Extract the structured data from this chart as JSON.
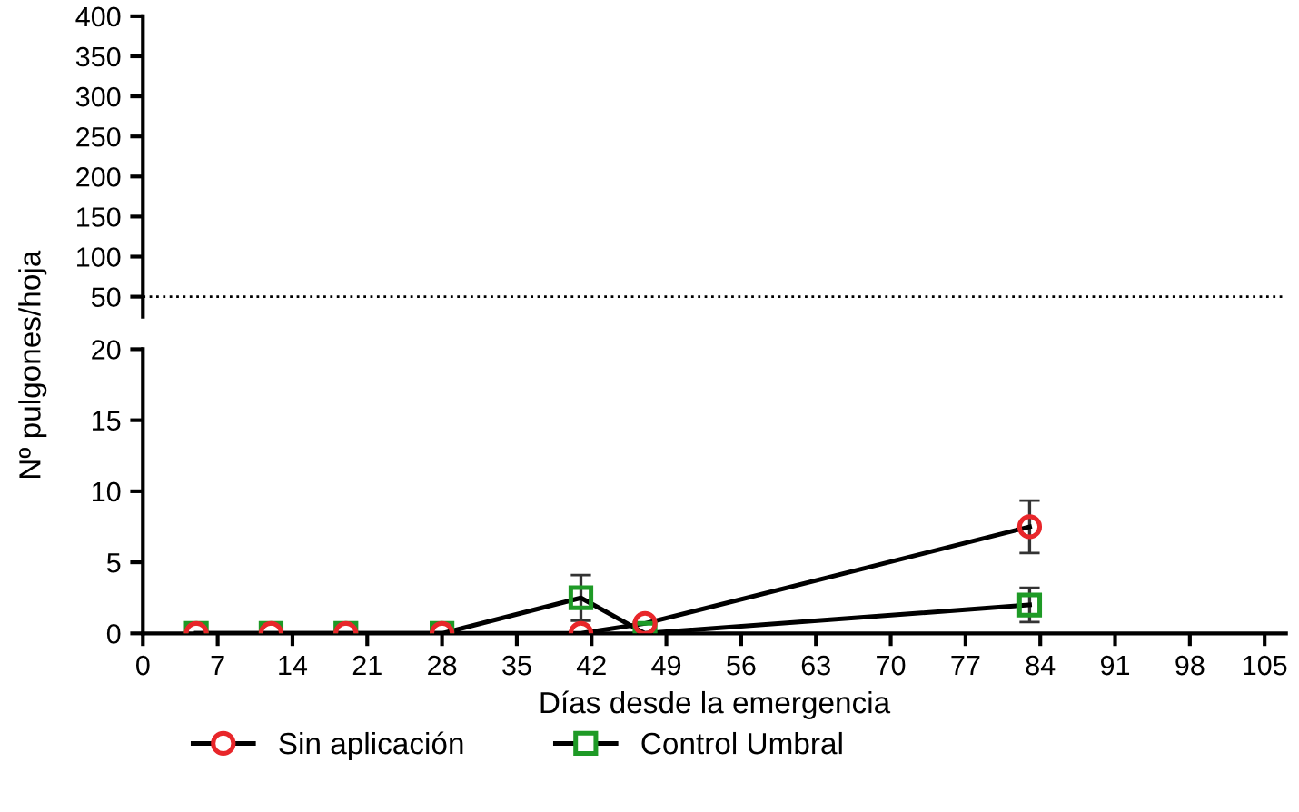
{
  "chart_data": [
    {
      "type": "line",
      "ylabel": "Nº pulgones/hoja",
      "xlim": [
        0,
        107
      ],
      "ylim": [
        25,
        400
      ],
      "yticks": [
        50,
        100,
        150,
        200,
        250,
        300,
        350,
        400
      ],
      "tick_labels": "y",
      "grid": false,
      "legend": false,
      "ref_lines": [
        {
          "axis": "y",
          "value": 50,
          "line_style": "dotted",
          "color": "#000000"
        }
      ]
    },
    {
      "type": "line",
      "xlabel": "Días desde la emergencia",
      "xlim": [
        0,
        107
      ],
      "xticks": [
        0,
        7,
        14,
        21,
        28,
        35,
        42,
        49,
        56,
        63,
        70,
        77,
        84,
        91,
        98,
        105
      ],
      "ylim": [
        0,
        20
      ],
      "yticks": [
        0,
        5,
        10,
        15,
        20
      ],
      "grid": false,
      "legend": "bottom",
      "line_style": "solid",
      "series": [
        {
          "name": "Sin aplicación",
          "color": "#e8262a",
          "marker": "circle",
          "x": [
            5,
            12,
            19,
            28,
            41,
            47,
            83
          ],
          "values": [
            0,
            0,
            0,
            0,
            0,
            0.7,
            7.5
          ],
          "errors": [
            null,
            null,
            null,
            null,
            null,
            null,
            1.85
          ]
        },
        {
          "name": "Control Umbral",
          "color": "#1e9a26",
          "marker": "square",
          "x": [
            5,
            12,
            19,
            28,
            41,
            47,
            83
          ],
          "values": [
            0,
            0,
            0,
            0,
            2.5,
            0,
            2
          ],
          "errors": [
            null,
            null,
            null,
            null,
            1.6,
            null,
            1.2
          ]
        }
      ]
    }
  ]
}
